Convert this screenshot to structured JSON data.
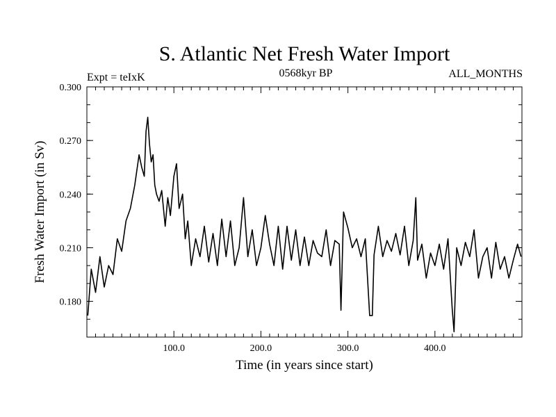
{
  "chart_data": {
    "type": "line",
    "title": "S. Atlantic Net Fresh Water Import",
    "experiment_label": "Expt = teIxK",
    "period_label": "0568kyr BP",
    "months_label": "ALL_MONTHS",
    "xlabel": "Time (in years since start)",
    "ylabel": "Fresh Water Import (in Sv)",
    "xlim": [
      0,
      500
    ],
    "ylim": [
      0.16,
      0.3
    ],
    "grid": false,
    "x_ticks": [
      100,
      200,
      300,
      400
    ],
    "x_tick_labels": [
      "100.0",
      "200.0",
      "300.0",
      "400.0"
    ],
    "y_ticks": [
      0.18,
      0.21,
      0.24,
      0.27,
      0.3
    ],
    "y_tick_labels": [
      "0.180",
      "0.210",
      "0.240",
      "0.270",
      "0.300"
    ],
    "series": [
      {
        "name": "Fresh Water Import",
        "x": [
          1,
          5,
          10,
          15,
          20,
          25,
          30,
          35,
          40,
          45,
          50,
          55,
          60,
          63,
          66,
          68,
          70,
          72,
          74,
          76,
          78,
          80,
          83,
          86,
          90,
          93,
          96,
          100,
          103,
          106,
          110,
          113,
          116,
          120,
          125,
          130,
          135,
          140,
          145,
          150,
          155,
          160,
          165,
          170,
          175,
          180,
          185,
          190,
          195,
          200,
          205,
          210,
          215,
          220,
          225,
          230,
          235,
          240,
          245,
          250,
          255,
          260,
          265,
          270,
          275,
          280,
          285,
          290,
          292,
          295,
          300,
          305,
          310,
          315,
          320,
          325,
          328,
          330,
          335,
          340,
          345,
          350,
          355,
          360,
          365,
          370,
          375,
          378,
          380,
          385,
          390,
          395,
          400,
          405,
          410,
          415,
          420,
          422,
          425,
          430,
          435,
          440,
          445,
          450,
          455,
          460,
          465,
          470,
          475,
          480,
          485,
          490,
          495,
          499
        ],
        "y": [
          0.172,
          0.198,
          0.185,
          0.205,
          0.188,
          0.2,
          0.195,
          0.215,
          0.208,
          0.225,
          0.232,
          0.245,
          0.262,
          0.255,
          0.25,
          0.275,
          0.283,
          0.268,
          0.258,
          0.262,
          0.245,
          0.24,
          0.236,
          0.242,
          0.222,
          0.238,
          0.228,
          0.25,
          0.257,
          0.232,
          0.24,
          0.215,
          0.225,
          0.2,
          0.215,
          0.205,
          0.222,
          0.202,
          0.218,
          0.2,
          0.226,
          0.205,
          0.225,
          0.2,
          0.21,
          0.238,
          0.205,
          0.22,
          0.2,
          0.21,
          0.228,
          0.212,
          0.2,
          0.222,
          0.198,
          0.222,
          0.203,
          0.22,
          0.2,
          0.216,
          0.2,
          0.214,
          0.207,
          0.205,
          0.22,
          0.2,
          0.214,
          0.212,
          0.175,
          0.23,
          0.221,
          0.21,
          0.215,
          0.205,
          0.215,
          0.172,
          0.172,
          0.206,
          0.222,
          0.205,
          0.214,
          0.208,
          0.218,
          0.206,
          0.222,
          0.2,
          0.214,
          0.238,
          0.203,
          0.212,
          0.193,
          0.207,
          0.2,
          0.212,
          0.198,
          0.215,
          0.175,
          0.163,
          0.21,
          0.2,
          0.213,
          0.205,
          0.22,
          0.193,
          0.205,
          0.21,
          0.193,
          0.213,
          0.198,
          0.205,
          0.193,
          0.203,
          0.212,
          0.205
        ]
      }
    ]
  }
}
